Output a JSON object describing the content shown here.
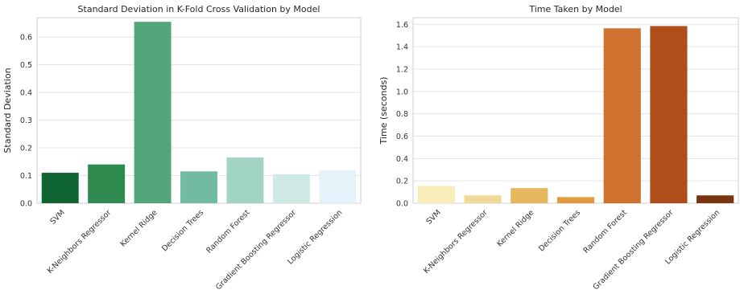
{
  "chart_data": [
    {
      "type": "bar",
      "title": "Standard Deviation in K-Fold Cross Validation by Model",
      "xlabel": "",
      "ylabel": "Standard Deviation",
      "categories": [
        "SVM",
        "K-Neighbors Regressor",
        "Kernel Ridge",
        "Decision Trees",
        "Random Forest",
        "Gradient Boosting Regressor",
        "Logistic Regression"
      ],
      "values": [
        0.11,
        0.14,
        0.655,
        0.115,
        0.165,
        0.105,
        0.12
      ],
      "colors": [
        "#0f6532",
        "#2f8a4f",
        "#52a67a",
        "#72bba0",
        "#a2d4c5",
        "#cfe9e5",
        "#e5f2f9"
      ],
      "ylim": [
        0,
        0.67
      ],
      "yticks": [
        0.0,
        0.1,
        0.2,
        0.3,
        0.4,
        0.5,
        0.6
      ],
      "ytick_labels": [
        "0.0",
        "0.1",
        "0.2",
        "0.3",
        "0.4",
        "0.5",
        "0.6"
      ],
      "grid": true,
      "legend": "none"
    },
    {
      "type": "bar",
      "title": "Time Taken by Model",
      "xlabel": "",
      "ylabel": "Time (seconds)",
      "categories": [
        "SVM",
        "K-Neighbors Regressor",
        "Kernel Ridge",
        "Decision Trees",
        "Random Forest",
        "Gradient Boosting Regressor",
        "Logistic Regression"
      ],
      "values": [
        0.155,
        0.07,
        0.135,
        0.055,
        1.565,
        1.585,
        0.07
      ],
      "colors": [
        "#f8ecb8",
        "#f1d998",
        "#e6b85d",
        "#e39a3f",
        "#d0722f",
        "#ad4e1b",
        "#7a3510"
      ],
      "ylim": [
        0,
        1.66
      ],
      "yticks": [
        0.0,
        0.2,
        0.4,
        0.6,
        0.8,
        1.0,
        1.2,
        1.4,
        1.6
      ],
      "ytick_labels": [
        "0.0",
        "0.2",
        "0.4",
        "0.6",
        "0.8",
        "1.0",
        "1.2",
        "1.4",
        "1.6"
      ],
      "grid": true,
      "legend": "none"
    }
  ]
}
